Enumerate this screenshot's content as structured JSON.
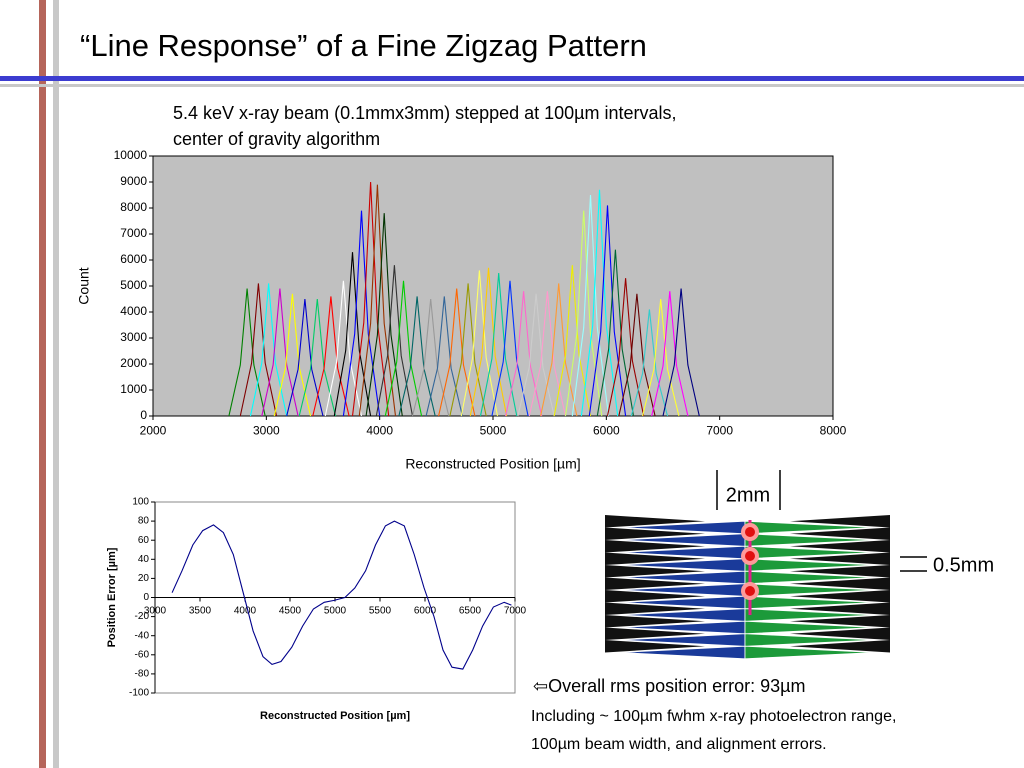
{
  "title": "“Line Response” of a Fine Zigzag Pattern",
  "subtitle": [
    "5.4 keV x-ray beam (0.1mmx3mm) stepped at 100µm intervals,",
    "center of gravity algorithm"
  ],
  "chart_data": [
    {
      "type": "line",
      "xlabel": "Reconstructed Position [µm]",
      "ylabel": "Count",
      "xlim": [
        2000,
        8000
      ],
      "xticks": [
        2000,
        3000,
        4000,
        5000,
        6000,
        7000,
        8000
      ],
      "ylim": [
        0,
        10000
      ],
      "yticks": [
        0,
        1000,
        2000,
        3000,
        4000,
        5000,
        6000,
        7000,
        8000,
        9000,
        10000
      ],
      "grid": false,
      "background": "#c0c0c0",
      "series": [
        {
          "color": "#008000",
          "x": [
            2670,
            2770,
            2830,
            2890,
            2990
          ],
          "values": [
            0,
            1960,
            4900,
            1960,
            0
          ]
        },
        {
          "color": "#800000",
          "x": [
            2770,
            2870,
            2930,
            2990,
            3090
          ],
          "values": [
            0,
            2040,
            5100,
            2040,
            0
          ]
        },
        {
          "color": "#00ffff",
          "x": [
            2860,
            2960,
            3020,
            3080,
            3180
          ],
          "values": [
            0,
            2040,
            5100,
            2040,
            0
          ]
        },
        {
          "color": "#cc00cc",
          "x": [
            2960,
            3060,
            3120,
            3180,
            3280
          ],
          "values": [
            0,
            1960,
            4900,
            1960,
            0
          ]
        },
        {
          "color": "#ffff00",
          "x": [
            3070,
            3170,
            3230,
            3290,
            3390
          ],
          "values": [
            0,
            1880,
            4700,
            1880,
            0
          ]
        },
        {
          "color": "#0000cc",
          "x": [
            3180,
            3280,
            3340,
            3400,
            3500
          ],
          "values": [
            0,
            1800,
            4500,
            1800,
            0
          ]
        },
        {
          "color": "#00cc66",
          "x": [
            3290,
            3390,
            3450,
            3510,
            3610
          ],
          "values": [
            0,
            1800,
            4500,
            1800,
            0
          ]
        },
        {
          "color": "#ff0000",
          "x": [
            3410,
            3510,
            3570,
            3630,
            3730
          ],
          "values": [
            0,
            1840,
            4600,
            1840,
            0
          ]
        },
        {
          "color": "#ffffff",
          "x": [
            3520,
            3620,
            3680,
            3740,
            3840
          ],
          "values": [
            0,
            2080,
            5200,
            2080,
            0
          ]
        },
        {
          "color": "#000000",
          "x": [
            3600,
            3700,
            3760,
            3820,
            3920
          ],
          "values": [
            0,
            2520,
            6300,
            2520,
            0
          ]
        },
        {
          "color": "#0000ff",
          "x": [
            3680,
            3780,
            3840,
            3900,
            4000
          ],
          "values": [
            0,
            3160,
            7900,
            3160,
            0
          ]
        },
        {
          "color": "#cc0000",
          "x": [
            3760,
            3860,
            3920,
            3980,
            4080
          ],
          "values": [
            0,
            3600,
            9000,
            3600,
            0
          ]
        },
        {
          "color": "#993300",
          "x": [
            3820,
            3920,
            3980,
            4040,
            4140
          ],
          "values": [
            0,
            3560,
            8900,
            3560,
            0
          ]
        },
        {
          "color": "#003300",
          "x": [
            3880,
            3980,
            4040,
            4100,
            4200
          ],
          "values": [
            0,
            3120,
            7800,
            3120,
            0
          ]
        },
        {
          "color": "#333333",
          "x": [
            3970,
            4070,
            4130,
            4190,
            4290
          ],
          "values": [
            0,
            2320,
            5800,
            2320,
            0
          ]
        },
        {
          "color": "#00cc00",
          "x": [
            4050,
            4150,
            4210,
            4270,
            4370
          ],
          "values": [
            0,
            2080,
            5200,
            2080,
            0
          ]
        },
        {
          "color": "#006666",
          "x": [
            4170,
            4270,
            4330,
            4390,
            4490
          ],
          "values": [
            0,
            1840,
            4600,
            1840,
            0
          ]
        },
        {
          "color": "#999999",
          "x": [
            4290,
            4390,
            4450,
            4510,
            4610
          ],
          "values": [
            0,
            1800,
            4500,
            1800,
            0
          ]
        },
        {
          "color": "#336699",
          "x": [
            4410,
            4510,
            4570,
            4630,
            4730
          ],
          "values": [
            0,
            1840,
            4600,
            1840,
            0
          ]
        },
        {
          "color": "#ff6600",
          "x": [
            4520,
            4620,
            4680,
            4740,
            4840
          ],
          "values": [
            0,
            1960,
            4900,
            1960,
            0
          ]
        },
        {
          "color": "#999900",
          "x": [
            4620,
            4720,
            4780,
            4840,
            4940
          ],
          "values": [
            0,
            2040,
            5100,
            2040,
            0
          ]
        },
        {
          "color": "#ffff66",
          "x": [
            4720,
            4820,
            4880,
            4940,
            5040
          ],
          "values": [
            0,
            2240,
            5600,
            2240,
            0
          ]
        },
        {
          "color": "#ffcc00",
          "x": [
            4800,
            4900,
            4960,
            5020,
            5120
          ],
          "values": [
            0,
            2280,
            5700,
            2280,
            0
          ]
        },
        {
          "color": "#00cc99",
          "x": [
            4890,
            4990,
            5050,
            5110,
            5210
          ],
          "values": [
            0,
            2200,
            5500,
            2200,
            0
          ]
        },
        {
          "color": "#0033ff",
          "x": [
            4990,
            5090,
            5150,
            5210,
            5310
          ],
          "values": [
            0,
            2080,
            5200,
            2080,
            0
          ]
        },
        {
          "color": "#ff66cc",
          "x": [
            5110,
            5210,
            5270,
            5330,
            5430
          ],
          "values": [
            0,
            1920,
            4800,
            1920,
            0
          ]
        },
        {
          "color": "#cccccc",
          "x": [
            5220,
            5320,
            5380,
            5440,
            5540
          ],
          "values": [
            0,
            1880,
            4700,
            1880,
            0
          ]
        },
        {
          "color": "#ff99cc",
          "x": [
            5320,
            5420,
            5480,
            5540,
            5640
          ],
          "values": [
            0,
            1920,
            4800,
            1920,
            0
          ]
        },
        {
          "color": "#ff9933",
          "x": [
            5420,
            5520,
            5580,
            5640,
            5740
          ],
          "values": [
            0,
            2040,
            5100,
            2040,
            0
          ]
        },
        {
          "color": "#eeee00",
          "x": [
            5540,
            5640,
            5700,
            5760,
            5860
          ],
          "values": [
            0,
            2320,
            5800,
            2320,
            0
          ]
        },
        {
          "color": "#ccff66",
          "x": [
            5640,
            5740,
            5800,
            5860,
            5960
          ],
          "values": [
            0,
            3160,
            7900,
            3160,
            0
          ]
        },
        {
          "color": "#99ffff",
          "x": [
            5700,
            5800,
            5860,
            5920,
            6020
          ],
          "values": [
            0,
            3400,
            8500,
            3400,
            0
          ]
        },
        {
          "color": "#00ffff",
          "x": [
            5780,
            5880,
            5940,
            6000,
            6100
          ],
          "values": [
            0,
            3480,
            8700,
            3480,
            0
          ]
        },
        {
          "color": "#0000ff",
          "x": [
            5850,
            5950,
            6010,
            6070,
            6170
          ],
          "values": [
            0,
            3240,
            8100,
            3240,
            0
          ]
        },
        {
          "color": "#006633",
          "x": [
            5920,
            6020,
            6080,
            6140,
            6240
          ],
          "values": [
            0,
            2560,
            6400,
            2560,
            0
          ]
        },
        {
          "color": "#990000",
          "x": [
            6010,
            6110,
            6170,
            6230,
            6330
          ],
          "values": [
            0,
            2120,
            5300,
            2120,
            0
          ]
        },
        {
          "color": "#660000",
          "x": [
            6110,
            6210,
            6270,
            6330,
            6430
          ],
          "values": [
            0,
            1880,
            4700,
            1880,
            0
          ]
        },
        {
          "color": "#33cccc",
          "x": [
            6220,
            6320,
            6380,
            6440,
            6540
          ],
          "values": [
            0,
            1640,
            4100,
            1640,
            0
          ]
        },
        {
          "color": "#ffff33",
          "x": [
            6320,
            6420,
            6480,
            6540,
            6640
          ],
          "values": [
            0,
            1800,
            4500,
            1800,
            0
          ]
        },
        {
          "color": "#ff00ff",
          "x": [
            6400,
            6500,
            6560,
            6620,
            6720
          ],
          "values": [
            0,
            1920,
            4800,
            1920,
            0
          ]
        },
        {
          "color": "#000080",
          "x": [
            6500,
            6600,
            6660,
            6720,
            6820
          ],
          "values": [
            0,
            1960,
            4900,
            1960,
            0
          ]
        }
      ]
    },
    {
      "type": "line",
      "xlabel": "Reconstructed Position [µm]",
      "ylabel": "Position Error [µm]",
      "xlim": [
        3000,
        7000
      ],
      "xticks": [
        3000,
        3500,
        4000,
        4500,
        5000,
        5500,
        6000,
        6500,
        7000
      ],
      "ylim": [
        -100,
        100
      ],
      "yticks": [
        -100,
        -80,
        -60,
        -40,
        -20,
        0,
        20,
        40,
        60,
        80,
        100
      ],
      "grid": false,
      "background": "#ffffff",
      "color": "#00008b",
      "x": [
        3190,
        3300,
        3420,
        3530,
        3650,
        3760,
        3870,
        3980,
        4090,
        4200,
        4300,
        4400,
        4520,
        4640,
        4760,
        4880,
        4990,
        5110,
        5220,
        5340,
        5450,
        5560,
        5660,
        5770,
        5880,
        5990,
        6100,
        6200,
        6300,
        6420,
        6530,
        6640,
        6760,
        6880,
        6960
      ],
      "values": [
        5,
        28,
        55,
        70,
        76,
        68,
        45,
        5,
        -35,
        -62,
        -70,
        -67,
        -52,
        -30,
        -12,
        -5,
        -3,
        0,
        10,
        28,
        55,
        75,
        80,
        75,
        45,
        10,
        -20,
        -55,
        -73,
        -75,
        -55,
        -30,
        -10,
        -5,
        -8
      ]
    }
  ],
  "diagram": {
    "labels": [
      "2mm",
      "0.5mm"
    ]
  },
  "notes": [
    "⇦Overall rms position error: 93µm",
    "Including ~ 100µm fwhm x-ray photoelectron range,",
    "100µm beam width, and alignment errors."
  ]
}
